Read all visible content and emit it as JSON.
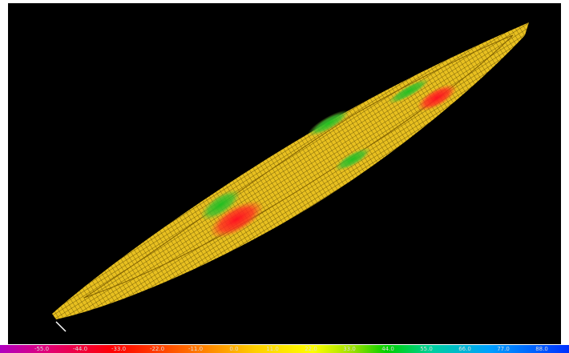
{
  "legend": {
    "labels": [
      "-55.0",
      "-44.0",
      "-33.0",
      "-22.0",
      "-11.0",
      "0.0",
      "11.0",
      "22.0",
      "33.0",
      "44.0",
      "55.0",
      "66.0",
      "77.0",
      "88.0"
    ]
  }
}
